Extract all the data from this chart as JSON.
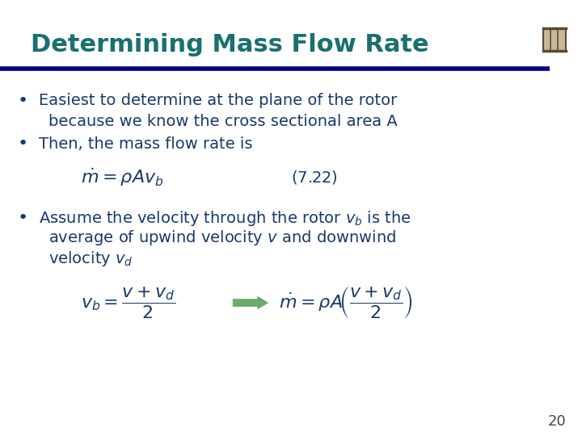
{
  "title": "Determining Mass Flow Rate",
  "title_color": "#1a7070",
  "title_fontsize": 22,
  "bg_color": "#ffffff",
  "separator_color": "#000080",
  "text_color": "#1a3a6b",
  "bullet_color": "#1a3a6b",
  "bullet1_line1": "Easiest to determine at the plane of the rotor",
  "bullet1_line2": "because we know the cross sectional area A",
  "bullet2": "Then, the mass flow rate is",
  "eq1": "$\\dot{m}= \\rho Av_b$",
  "eq1_label": "$(7.22)$",
  "bullet3_line1": "Assume the velocity through the rotor $v_b$ is the",
  "bullet3_line2": "average of upwind velocity $v$ and downwind",
  "bullet3_line3": "velocity $v_d$",
  "eq2_left": "$v_b=\\dfrac{v+v_d}{2}$",
  "eq2_right": "$\\dot{m}= \\rho A\\!\\left(\\dfrac{v+v_d}{2}\\right)$",
  "arrow_color": "#6aaa6a",
  "page_number": "20",
  "logo_border_color": "#5a4a3a",
  "logo_fill_color": "#c8b89a",
  "separator_thick_color": "#000080",
  "separator_thin_color": "#4444aa"
}
